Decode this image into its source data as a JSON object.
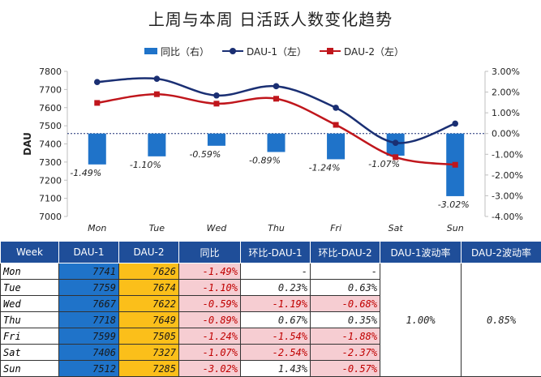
{
  "colors": {
    "bar": "#1f73c9",
    "dau1": "#1a2f73",
    "dau2": "#c0161c",
    "header": "#1f4e99",
    "dau1_cell": "#1f73c9",
    "dau2_cell": "#fbbf1a",
    "neg_cell": "#f6cdd2"
  },
  "chart_data": {
    "type": "bar+line",
    "title": "上周与本周 日活跃人数变化趋势",
    "categories": [
      "Mon",
      "Tue",
      "Wed",
      "Thu",
      "Fri",
      "Sat",
      "Sun"
    ],
    "ylabel": "DAU",
    "ylim": [
      7000,
      7800
    ],
    "y_ticks": [
      "7000",
      "7100",
      "7200",
      "7300",
      "7400",
      "7500",
      "7600",
      "7700",
      "7800"
    ],
    "y2lim": [
      -0.04,
      0.03
    ],
    "y2_ticks": [
      "-4.00%",
      "-3.00%",
      "-2.00%",
      "-1.00%",
      "0.00%",
      "1.00%",
      "2.00%",
      "3.00%"
    ],
    "legend": [
      "同比（右）",
      "DAU-1（左）",
      "DAU-2（左）"
    ],
    "legend_position": "top",
    "series": [
      {
        "name": "同比（右）",
        "type": "bar",
        "axis": "right",
        "values": [
          -0.0149,
          -0.011,
          -0.0059,
          -0.0089,
          -0.0124,
          -0.0107,
          -0.0302
        ],
        "labels": [
          "-1.49%",
          "-1.10%",
          "-0.59%",
          "-0.89%",
          "-1.24%",
          "-1.07%",
          "-3.02%"
        ]
      },
      {
        "name": "DAU-1（左）",
        "type": "line",
        "axis": "left",
        "values": [
          7741,
          7759,
          7667,
          7718,
          7599,
          7406,
          7512
        ]
      },
      {
        "name": "DAU-2（左）",
        "type": "line",
        "axis": "left",
        "values": [
          7626,
          7674,
          7622,
          7649,
          7505,
          7327,
          7285
        ]
      }
    ]
  },
  "table": {
    "headers": [
      "Week",
      "DAU-1",
      "DAU-2",
      "同比",
      "环比-DAU-1",
      "环比-DAU-2",
      "DAU-1波动率",
      "DAU-2波动率"
    ],
    "rows": [
      {
        "day": "Mon",
        "dau1": "7741",
        "dau2": "7626",
        "yoy": "-1.49%",
        "mom1": "-",
        "mom2": "-"
      },
      {
        "day": "Tue",
        "dau1": "7759",
        "dau2": "7674",
        "yoy": "-1.10%",
        "mom1": "0.23%",
        "mom2": "0.63%"
      },
      {
        "day": "Wed",
        "dau1": "7667",
        "dau2": "7622",
        "yoy": "-0.59%",
        "mom1": "-1.19%",
        "mom2": "-0.68%"
      },
      {
        "day": "Thu",
        "dau1": "7718",
        "dau2": "7649",
        "yoy": "-0.89%",
        "mom1": "0.67%",
        "mom2": "0.35%"
      },
      {
        "day": "Fri",
        "dau1": "7599",
        "dau2": "7505",
        "yoy": "-1.24%",
        "mom1": "-1.54%",
        "mom2": "-1.88%"
      },
      {
        "day": "Sat",
        "dau1": "7406",
        "dau2": "7327",
        "yoy": "-1.07%",
        "mom1": "-2.54%",
        "mom2": "-2.37%"
      },
      {
        "day": "Sun",
        "dau1": "7512",
        "dau2": "7285",
        "yoy": "-3.02%",
        "mom1": "1.43%",
        "mom2": "-0.57%"
      }
    ],
    "volatility_dau1": "1.00%",
    "volatility_dau2": "0.85%"
  }
}
